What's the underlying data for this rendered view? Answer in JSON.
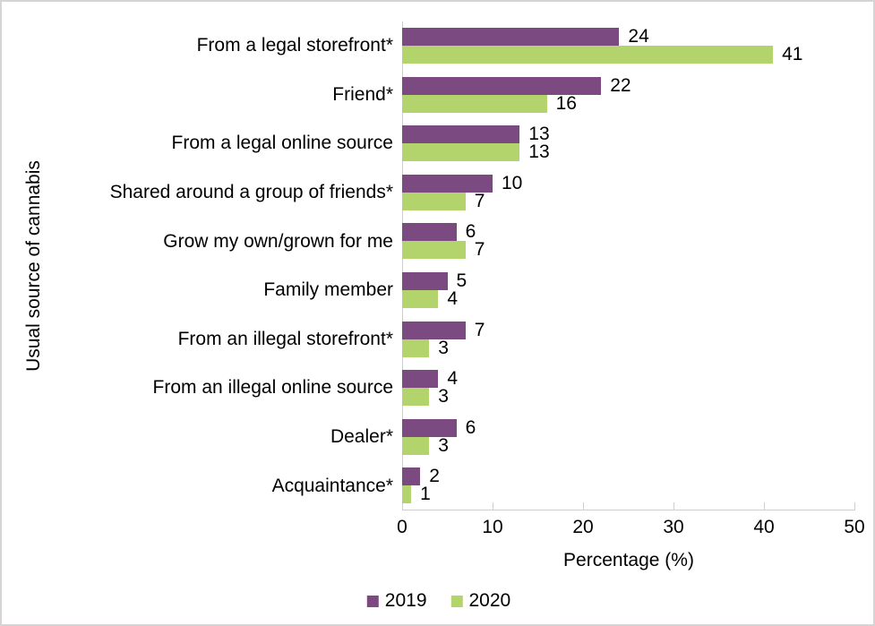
{
  "figure": {
    "x_axis_title": "Percentage (%)",
    "y_axis_title": "Usual source of cannabis"
  },
  "chart_data": {
    "type": "bar",
    "orientation": "horizontal",
    "title": "",
    "xlabel": "Percentage (%)",
    "ylabel": "Usual source of cannabis",
    "xlim": [
      0,
      50
    ],
    "xticks": [
      0,
      10,
      20,
      30,
      40,
      50
    ],
    "grid": false,
    "data_labels": true,
    "legend_position": "bottom",
    "categories": [
      "From a legal storefront*",
      "Friend*",
      "From a legal online source",
      "Shared around a group of friends*",
      "Grow my own/grown for me",
      "Family member",
      "From an illegal storefront*",
      "From an illegal online source",
      "Dealer*",
      "Acquaintance*"
    ],
    "series": [
      {
        "name": "2019",
        "color": "#7a4a80",
        "values": [
          24,
          22,
          13,
          10,
          6,
          5,
          7,
          4,
          6,
          2
        ]
      },
      {
        "name": "2020",
        "color": "#b3d36c",
        "values": [
          41,
          16,
          13,
          7,
          7,
          4,
          3,
          3,
          3,
          1
        ]
      }
    ]
  }
}
